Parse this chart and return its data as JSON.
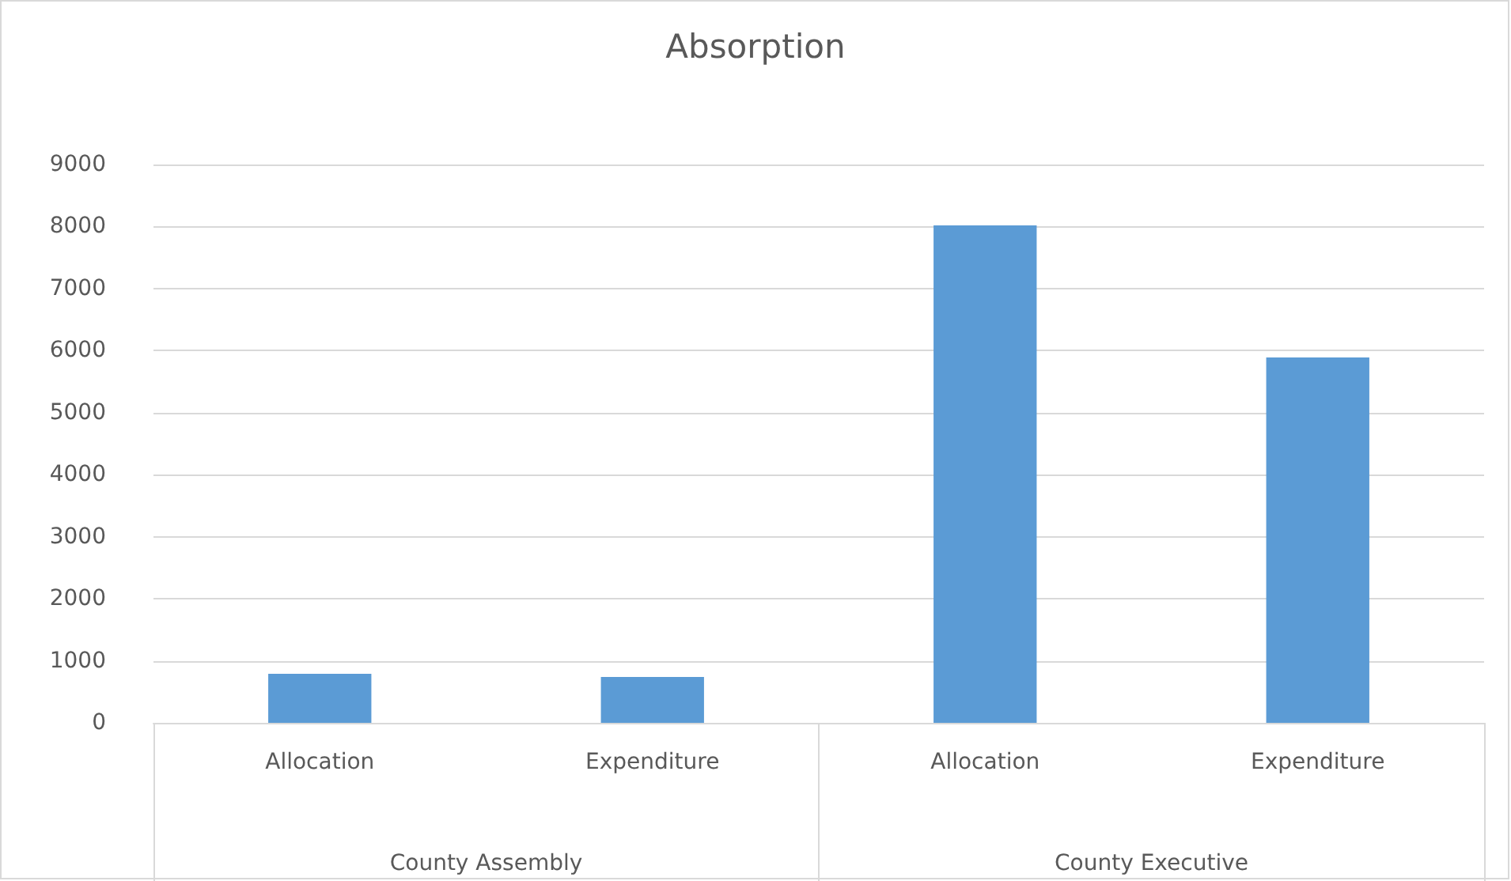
{
  "chart_data": {
    "type": "bar",
    "title": "Absorption",
    "categories": [
      "Allocation",
      "Expenditure",
      "Allocation",
      "Expenditure"
    ],
    "values": [
      790,
      740,
      8020,
      5890
    ],
    "color": "#5b9bd5",
    "ylim": [
      0,
      9000
    ],
    "yticks": [
      0,
      1000,
      2000,
      3000,
      4000,
      5000,
      6000,
      7000,
      8000,
      9000
    ],
    "grid": "y",
    "annotations": [
      "County Assembly",
      "County Executive"
    ]
  }
}
